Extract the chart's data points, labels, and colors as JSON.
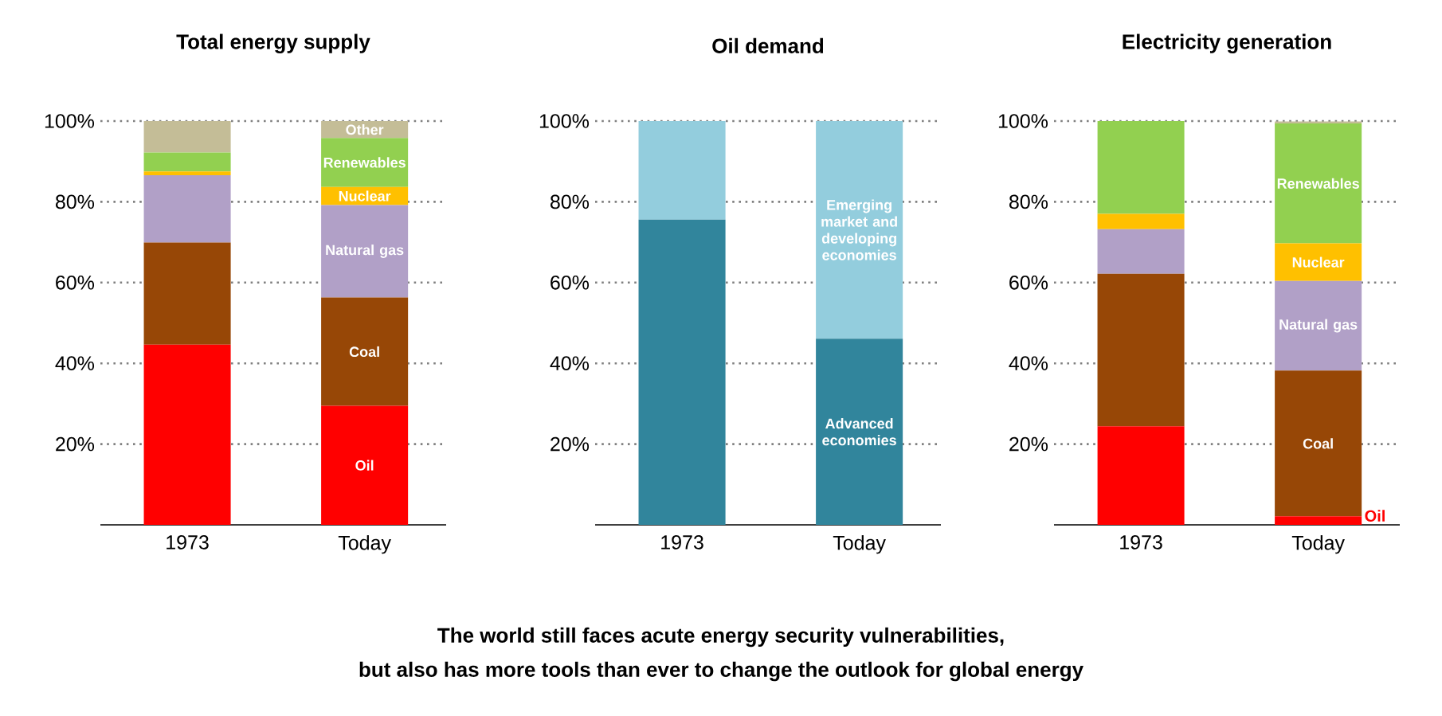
{
  "chart_data": [
    {
      "type": "bar",
      "stacked": true,
      "title": "Total energy supply",
      "categories": [
        "1973",
        "Today"
      ],
      "ylim": [
        0,
        100
      ],
      "yticks": [
        {
          "value": 20,
          "label": "20%"
        },
        {
          "value": 40,
          "label": "40%"
        },
        {
          "value": 60,
          "label": "60%"
        },
        {
          "value": 80,
          "label": "80%"
        },
        {
          "value": 100,
          "label": "100%"
        }
      ],
      "grid": "y",
      "series": [
        {
          "name": "Oil",
          "color": "#ff0000",
          "values": [
            44.6,
            29.5
          ]
        },
        {
          "name": "Coal",
          "color": "#974706",
          "values": [
            25.3,
            26.8
          ]
        },
        {
          "name": "Natural gas",
          "color": "#b1a0c7",
          "values": [
            16.7,
            22.9
          ]
        },
        {
          "name": "Nuclear",
          "color": "#ffc000",
          "values": [
            0.9,
            4.5
          ]
        },
        {
          "name": "Renewables",
          "color": "#92d050",
          "values": [
            4.7,
            12.1
          ]
        },
        {
          "name": "Other",
          "color": "#c4bd97",
          "values": [
            7.8,
            4.2
          ]
        }
      ]
    },
    {
      "type": "bar",
      "stacked": true,
      "title": "Oil demand",
      "categories": [
        "1973",
        "Today"
      ],
      "ylim": [
        0,
        100
      ],
      "yticks": [
        {
          "value": 20,
          "label": "20%"
        },
        {
          "value": 40,
          "label": "40%"
        },
        {
          "value": 60,
          "label": "60%"
        },
        {
          "value": 80,
          "label": "80%"
        },
        {
          "value": 100,
          "label": "100%"
        }
      ],
      "grid": "y",
      "series": [
        {
          "name": "Advanced economies",
          "color": "#31859c",
          "values": [
            75.6,
            46.1
          ]
        },
        {
          "name": "Emerging market and developing economies",
          "color": "#93cddd",
          "values": [
            24.4,
            53.9
          ]
        }
      ],
      "annotations": [
        "The world still faces acute energy security vulnerabilities,",
        "but also has more tools than ever to change the outlook for global energy"
      ]
    },
    {
      "type": "bar",
      "stacked": true,
      "title": "Electricity generation",
      "categories": [
        "1973",
        "Today"
      ],
      "ylim": [
        0,
        100
      ],
      "yticks": [
        {
          "value": 20,
          "label": "20%"
        },
        {
          "value": 40,
          "label": "40%"
        },
        {
          "value": 60,
          "label": "60%"
        },
        {
          "value": 80,
          "label": "80%"
        },
        {
          "value": 100,
          "label": "100%"
        }
      ],
      "grid": "y",
      "series": [
        {
          "name": "Oil",
          "color": "#ff0000",
          "values": [
            24.4,
            2.1
          ]
        },
        {
          "name": "Coal",
          "color": "#974706",
          "values": [
            37.8,
            36.1
          ]
        },
        {
          "name": "Natural gas",
          "color": "#b1a0c7",
          "values": [
            11.0,
            22.2
          ]
        },
        {
          "name": "Nuclear",
          "color": "#ffc000",
          "values": [
            3.8,
            9.3
          ]
        },
        {
          "name": "Renewables",
          "color": "#92d050",
          "values": [
            23.0,
            29.7
          ]
        },
        {
          "color": "#c4bd97",
          "values": [
            0,
            0.5
          ]
        }
      ]
    }
  ]
}
